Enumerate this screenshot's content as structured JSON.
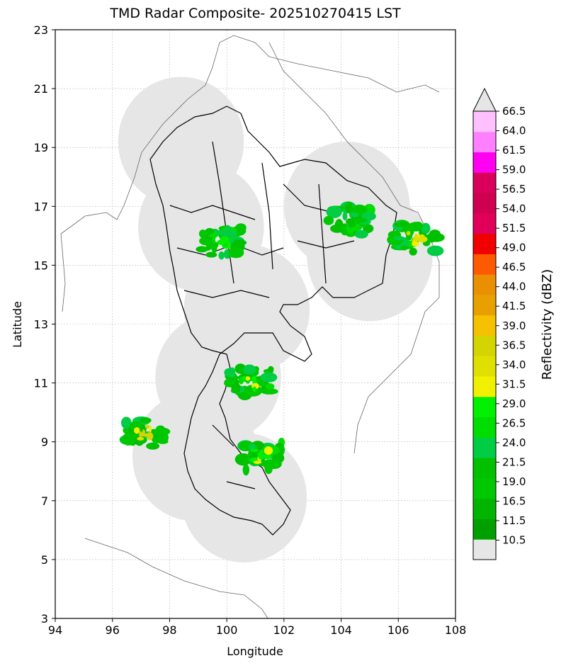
{
  "title": "TMD Radar Composite- 202510270415 LST",
  "xlabel": "Longitude",
  "ylabel": "Latitude",
  "x_ticks": [
    "94",
    "96",
    "98",
    "100",
    "102",
    "104",
    "106",
    "108"
  ],
  "y_ticks": [
    "23",
    "21",
    "19",
    "17",
    "15",
    "13",
    "11",
    "9",
    "7",
    "5",
    "3"
  ],
  "colorbar": {
    "label": "Reflectivity (dBZ)",
    "levels": [
      "10.5",
      "11.5",
      "16.5",
      "19.0",
      "21.5",
      "24.0",
      "26.5",
      "29.0",
      "31.5",
      "34.0",
      "36.5",
      "39.0",
      "41.5",
      "44.0",
      "46.5",
      "49.0",
      "51.5",
      "54.0",
      "56.5",
      "59.0",
      "61.5",
      "64.0",
      "66.5"
    ],
    "colors": [
      "#e6e6e6",
      "#00a000",
      "#00b400",
      "#00c800",
      "#00c000",
      "#00cc44",
      "#00dd00",
      "#00f000",
      "#f0f000",
      "#e0e000",
      "#d4d400",
      "#f4c000",
      "#e8a000",
      "#e89000",
      "#ff5a00",
      "#f00000",
      "#e0005a",
      "#d00050",
      "#d8005a",
      "#ff00f0",
      "#ff80ff",
      "#ffc0ff",
      "#e6e6e6"
    ]
  },
  "chart_data": {
    "type": "map",
    "xlim": [
      94,
      108
    ],
    "ylim": [
      3,
      23
    ],
    "grid": true,
    "radar_coverage_centers": [
      [
        98.4,
        19.2
      ],
      [
        99.1,
        16.3
      ],
      [
        104.2,
        17.0
      ],
      [
        105.0,
        15.3
      ],
      [
        100.7,
        13.5
      ],
      [
        99.7,
        11.2
      ],
      [
        98.9,
        8.5
      ],
      [
        100.6,
        7.1
      ]
    ],
    "echo_areas": [
      {
        "lon": 106.6,
        "lat": 15.9,
        "max_dbz": 36.5
      },
      {
        "lon": 97.1,
        "lat": 9.3,
        "max_dbz": 36.5
      },
      {
        "lon": 100.8,
        "lat": 11.0,
        "max_dbz": 31.5
      },
      {
        "lon": 101.2,
        "lat": 8.5,
        "max_dbz": 31.5
      },
      {
        "lon": 99.8,
        "lat": 15.8,
        "max_dbz": 29.0
      },
      {
        "lon": 104.3,
        "lat": 16.5,
        "max_dbz": 26.5
      }
    ]
  }
}
